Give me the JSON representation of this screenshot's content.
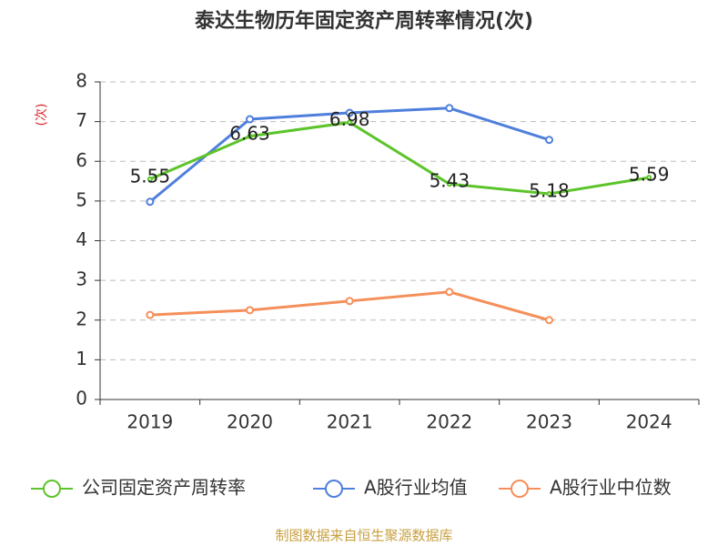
{
  "chart_data": {
    "type": "line",
    "title": "泰达生物历年固定资产周转率情况(次)",
    "y_label": "(次)",
    "source": "制图数据来自恒生聚源数据库",
    "categories": [
      "2019",
      "2020",
      "2021",
      "2022",
      "2023",
      "2024"
    ],
    "series": [
      {
        "name": "公司固定资产周转率",
        "color": "#5cc42a",
        "values": [
          5.55,
          6.63,
          6.98,
          5.43,
          5.18,
          5.59
        ]
      },
      {
        "name": "A股行业均值",
        "color": "#4f7fdc",
        "values": [
          4.98,
          7.06,
          7.22,
          7.34,
          6.54,
          null
        ]
      },
      {
        "name": "A股行业中位数",
        "color": "#f58f5a",
        "values": [
          2.13,
          2.25,
          2.48,
          2.71,
          2.0,
          null
        ]
      }
    ],
    "ylim": [
      0,
      8
    ],
    "yticks": [
      0,
      1,
      2,
      3,
      4,
      5,
      6,
      7,
      8
    ],
    "grid": true
  }
}
